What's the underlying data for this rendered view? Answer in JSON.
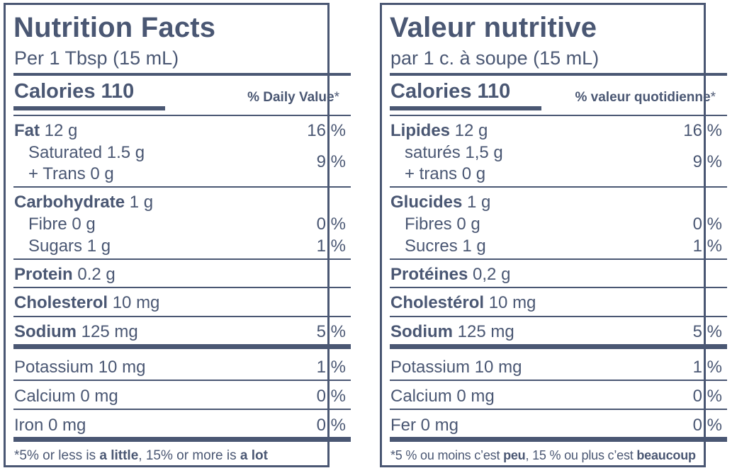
{
  "en": {
    "title": "Nutrition Facts",
    "serving": "Per 1 Tbsp (15 mL)",
    "calories": "Calories 110",
    "dv_header": "% Daily Value",
    "dv_star": "*",
    "fat": {
      "name": "Fat",
      "amount": " 12 g",
      "dv": "16 %"
    },
    "saturated": "Saturated 1.5 g",
    "trans": "+ Trans 0 g",
    "sat_trans_dv": "9 %",
    "carb": {
      "name": "Carbohydrate",
      "amount": " 1 g"
    },
    "fibre": {
      "label": "Fibre 0 g",
      "dv": "0 %"
    },
    "sugars": {
      "label": "Sugars 1 g",
      "dv": "1 %"
    },
    "protein": {
      "name": "Protein",
      "amount": " 0.2 g"
    },
    "cholesterol": {
      "name": "Cholesterol",
      "amount": " 10 mg"
    },
    "sodium": {
      "name": "Sodium",
      "amount": " 125 mg",
      "dv": "5 %"
    },
    "potassium": {
      "label": "Potassium 10 mg",
      "dv": "1 %"
    },
    "calcium": {
      "label": "Calcium 0 mg",
      "dv": "0 %"
    },
    "iron": {
      "label": "Iron 0 mg",
      "dv": "0 %"
    },
    "footnote": {
      "p1": "*5% or less is ",
      "b1": "a little",
      "p2": ", 15% or more is ",
      "b2": "a lot"
    }
  },
  "fr": {
    "title": "Valeur nutritive",
    "serving": "par 1 c. à soupe (15 mL)",
    "calories": "Calories 110",
    "dv_header": "% valeur quotidienne",
    "dv_star": "*",
    "fat": {
      "name": "Lipides",
      "amount": " 12 g",
      "dv": "16 %"
    },
    "saturated": "saturés 1,5 g",
    "trans": "+ trans 0 g",
    "sat_trans_dv": "9 %",
    "carb": {
      "name": "Glucides",
      "amount": " 1 g"
    },
    "fibre": {
      "label": "Fibres 0 g",
      "dv": "0 %"
    },
    "sugars": {
      "label": "Sucres 1 g",
      "dv": "1 %"
    },
    "protein": {
      "name": "Protéines",
      "amount": " 0,2 g"
    },
    "cholesterol": {
      "name": "Cholestérol",
      "amount": " 10 mg"
    },
    "sodium": {
      "name": "Sodium",
      "amount": " 125 mg",
      "dv": "5 %"
    },
    "potassium": {
      "label": "Potassium 10 mg",
      "dv": "1 %"
    },
    "calcium": {
      "label": "Calcium 0 mg",
      "dv": "0 %"
    },
    "iron": {
      "label": "Fer 0 mg",
      "dv": "0 %"
    },
    "footnote": {
      "p1": "*5 % ou moins c’est ",
      "b1": "peu",
      "p2": ", 15 % ou plus c’est ",
      "b2": "beaucoup"
    }
  },
  "colors": {
    "ink": "#4a5773",
    "background": "#ffffff"
  }
}
